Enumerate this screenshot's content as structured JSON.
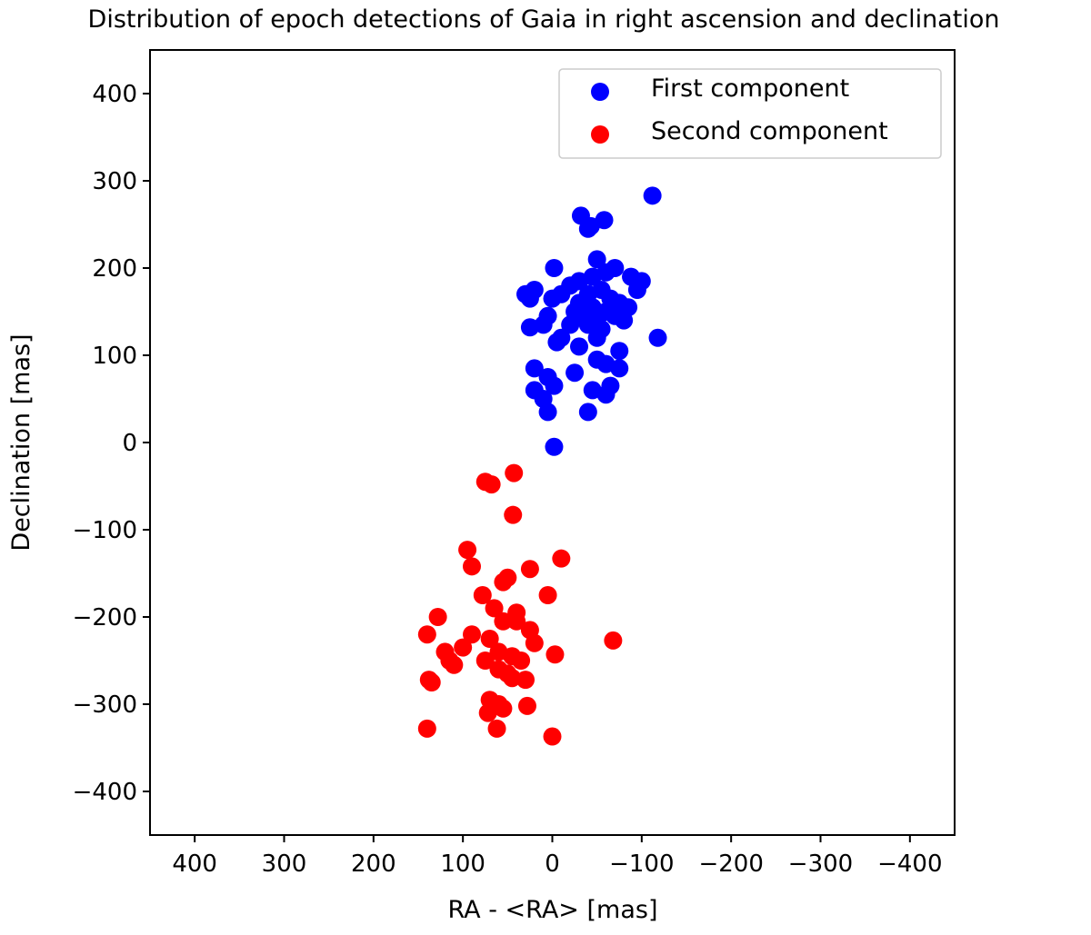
{
  "chart_data": {
    "type": "scatter",
    "title": "Distribution of epoch detections of Gaia in right ascension and declination",
    "xlabel": "RA - <RA> [mas]",
    "ylabel": "Declination [mas]",
    "xlim": [
      450,
      -450
    ],
    "ylim": [
      -450,
      450
    ],
    "xticks": [
      400,
      300,
      200,
      100,
      0,
      -100,
      -200,
      -300,
      -400
    ],
    "yticks": [
      400,
      300,
      200,
      100,
      0,
      -100,
      -200,
      -300,
      -400
    ],
    "xtick_labels": [
      "400",
      "300",
      "200",
      "100",
      "0",
      "−100",
      "−200",
      "−300",
      "−400"
    ],
    "ytick_labels": [
      "400",
      "300",
      "200",
      "100",
      "0",
      "−100",
      "−200",
      "−300",
      "−400"
    ],
    "grid": false,
    "legend_position": "top-right",
    "series": [
      {
        "name": "First component",
        "color": "#0000ff",
        "points": [
          [
            -112,
            283
          ],
          [
            -32,
            260
          ],
          [
            -40,
            245
          ],
          [
            -58,
            255
          ],
          [
            -43,
            248
          ],
          [
            -2,
            200
          ],
          [
            -50,
            210
          ],
          [
            -88,
            190
          ],
          [
            -100,
            185
          ],
          [
            -95,
            175
          ],
          [
            -70,
            200
          ],
          [
            -60,
            195
          ],
          [
            -45,
            190
          ],
          [
            -30,
            185
          ],
          [
            -20,
            180
          ],
          [
            -10,
            170
          ],
          [
            -40,
            170
          ],
          [
            -55,
            175
          ],
          [
            -65,
            165
          ],
          [
            -75,
            160
          ],
          [
            -85,
            155
          ],
          [
            -30,
            160
          ],
          [
            -45,
            155
          ],
          [
            -60,
            150
          ],
          [
            -35,
            145
          ],
          [
            -25,
            150
          ],
          [
            -50,
            140
          ],
          [
            -70,
            145
          ],
          [
            -80,
            140
          ],
          [
            -40,
            135
          ],
          [
            -55,
            130
          ],
          [
            -20,
            135
          ],
          [
            -10,
            120
          ],
          [
            -30,
            110
          ],
          [
            -50,
            120
          ],
          [
            25,
            165
          ],
          [
            30,
            170
          ],
          [
            20,
            175
          ],
          [
            0,
            165
          ],
          [
            5,
            145
          ],
          [
            10,
            135
          ],
          [
            25,
            132
          ],
          [
            -5,
            115
          ],
          [
            -118,
            120
          ],
          [
            -75,
            105
          ],
          [
            20,
            85
          ],
          [
            -25,
            80
          ],
          [
            -50,
            95
          ],
          [
            -60,
            90
          ],
          [
            -75,
            85
          ],
          [
            5,
            75
          ],
          [
            -2,
            65
          ],
          [
            20,
            60
          ],
          [
            10,
            50
          ],
          [
            -45,
            60
          ],
          [
            -60,
            55
          ],
          [
            -65,
            65
          ],
          [
            5,
            35
          ],
          [
            -40,
            35
          ],
          [
            -2,
            -5
          ]
        ]
      },
      {
        "name": "Second component",
        "color": "#ff0000",
        "points": [
          [
            75,
            -45
          ],
          [
            68,
            -48
          ],
          [
            43,
            -35
          ],
          [
            44,
            -83
          ],
          [
            95,
            -123
          ],
          [
            90,
            -142
          ],
          [
            55,
            -160
          ],
          [
            50,
            -155
          ],
          [
            25,
            -145
          ],
          [
            -10,
            -133
          ],
          [
            78,
            -175
          ],
          [
            5,
            -175
          ],
          [
            65,
            -190
          ],
          [
            40,
            -195
          ],
          [
            55,
            -205
          ],
          [
            128,
            -200
          ],
          [
            40,
            -205
          ],
          [
            25,
            -215
          ],
          [
            20,
            -230
          ],
          [
            -68,
            -227
          ],
          [
            140,
            -220
          ],
          [
            90,
            -220
          ],
          [
            70,
            -225
          ],
          [
            100,
            -235
          ],
          [
            120,
            -240
          ],
          [
            115,
            -250
          ],
          [
            60,
            -240
          ],
          [
            45,
            -245
          ],
          [
            35,
            -250
          ],
          [
            75,
            -250
          ],
          [
            110,
            -255
          ],
          [
            50,
            -265
          ],
          [
            60,
            -260
          ],
          [
            45,
            -270
          ],
          [
            30,
            -272
          ],
          [
            -3,
            -243
          ],
          [
            138,
            -272
          ],
          [
            135,
            -275
          ],
          [
            70,
            -295
          ],
          [
            60,
            -300
          ],
          [
            72,
            -310
          ],
          [
            55,
            -305
          ],
          [
            28,
            -302
          ],
          [
            140,
            -328
          ],
          [
            62,
            -328
          ],
          [
            0,
            -337
          ]
        ]
      }
    ]
  }
}
